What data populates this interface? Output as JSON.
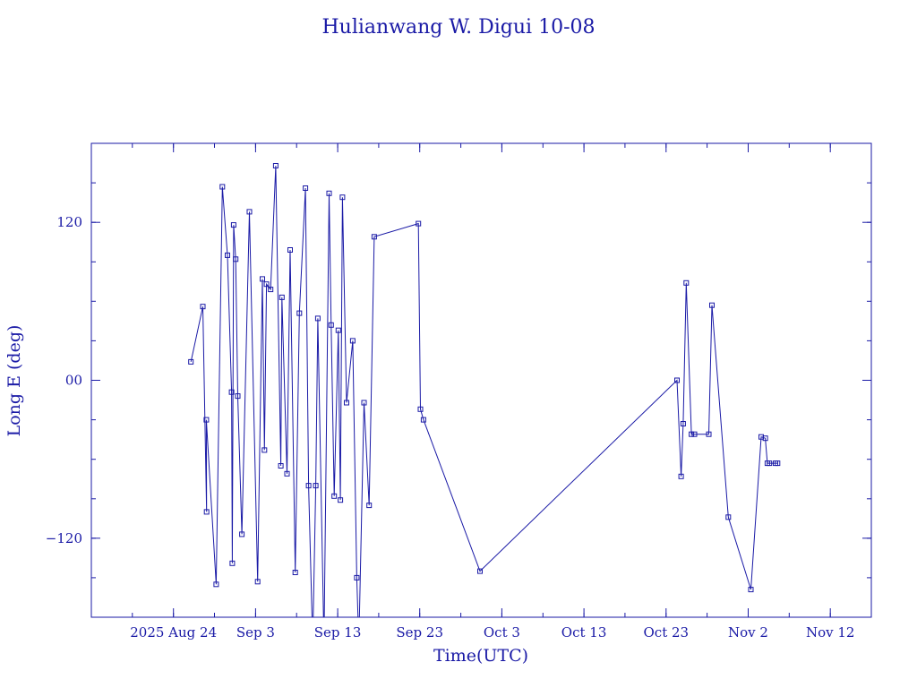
{
  "chart_data": {
    "type": "line",
    "title": "Hulianwang W. Digui 10-08",
    "xlabel": "Time(UTC)",
    "ylabel": "Long E (deg)",
    "xlim": [
      "2025-08-14",
      "2025-11-17"
    ],
    "ylim": [
      -180,
      180
    ],
    "x_ticks": [
      {
        "date": "2025-08-24",
        "label": "2025 Aug 24"
      },
      {
        "date": "2025-09-03",
        "label": "Sep  3"
      },
      {
        "date": "2025-09-13",
        "label": "Sep 13"
      },
      {
        "date": "2025-09-23",
        "label": "Sep 23"
      },
      {
        "date": "2025-10-03",
        "label": "Oct  3"
      },
      {
        "date": "2025-10-13",
        "label": "Oct 13"
      },
      {
        "date": "2025-10-23",
        "label": "Oct 23"
      },
      {
        "date": "2025-11-02",
        "label": "Nov  2"
      },
      {
        "date": "2025-11-12",
        "label": "Nov 12"
      }
    ],
    "y_ticks": [
      {
        "value": 120,
        "label": "120"
      },
      {
        "value": 0,
        "label": "00"
      },
      {
        "value": -120,
        "label": "−120"
      }
    ],
    "grid": false,
    "legend": "none",
    "color": "#1a1aa6",
    "series": [
      {
        "x": [
          "2025-08-26T03:00",
          "2025-08-27T14:00",
          "2025-08-28T01:00",
          "2025-08-28T00:00",
          "2025-08-29T05:00",
          "2025-08-29T23:00",
          "2025-08-30T14:00",
          "2025-08-31T02:00",
          "2025-08-31T04:00",
          "2025-08-31T08:00",
          "2025-08-31T14:00",
          "2025-08-31T20:00",
          "2025-09-01T08:00",
          "2025-09-02T06:00",
          "2025-09-03T06:00",
          "2025-09-03T20:00",
          "2025-09-04T02:00",
          "2025-09-04T08:00",
          "2025-09-04T20:00",
          "2025-09-05T11:00",
          "2025-09-06T02:00",
          "2025-09-06T05:00",
          "2025-09-06T20:00",
          "2025-09-07T05:00",
          "2025-09-07T20:00",
          "2025-09-08T08:00",
          "2025-09-09T02:00",
          "2025-09-09T11:00",
          "2025-09-09T23:00",
          "2025-09-10T08:00",
          "2025-09-10T14:00",
          "2025-09-11T08:00",
          "2025-09-11T23:00",
          "2025-09-12T05:00",
          "2025-09-12T14:00",
          "2025-09-13T02:00",
          "2025-09-13T08:00",
          "2025-09-13T14:00",
          "2025-09-14T02:00",
          "2025-09-14T20:00",
          "2025-09-15T08:00",
          "2025-09-15T14:00",
          "2025-09-16T05:00",
          "2025-09-16T20:00",
          "2025-09-17T11:00",
          "2025-09-22T20:00",
          "2025-09-23T02:00",
          "2025-09-23T11:00",
          "2025-09-30T08:00",
          "2025-10-24T08:00",
          "2025-10-24T20:00",
          "2025-10-25T02:00",
          "2025-10-25T11:00",
          "2025-10-26T02:00",
          "2025-10-26T11:00",
          "2025-10-28T05:00",
          "2025-10-28T14:00",
          "2025-10-30T14:00",
          "2025-11-02T08:00",
          "2025-11-03T14:00",
          "2025-11-04T02:00",
          "2025-11-04T08:00",
          "2025-11-04T14:00",
          "2025-11-05T08:00",
          "2025-11-05T14:00"
        ],
        "y": [
          14,
          56,
          -100,
          -30,
          -155,
          147,
          95,
          -9,
          -139,
          118,
          92,
          -12,
          -117,
          128,
          -153,
          77,
          -53,
          73,
          69,
          163,
          -65,
          63,
          -71,
          99,
          -146,
          51,
          146,
          -80,
          -200,
          -80,
          47,
          -200,
          142,
          42,
          -88,
          38,
          -91,
          139,
          -17,
          30,
          -150,
          -200,
          -17,
          -95,
          109,
          119,
          -22,
          -30,
          -145,
          0,
          -73,
          -33,
          74,
          -41,
          -41,
          -41,
          57,
          -104,
          -159,
          -43,
          -44,
          -63,
          -63,
          -63,
          -63
        ]
      }
    ]
  }
}
